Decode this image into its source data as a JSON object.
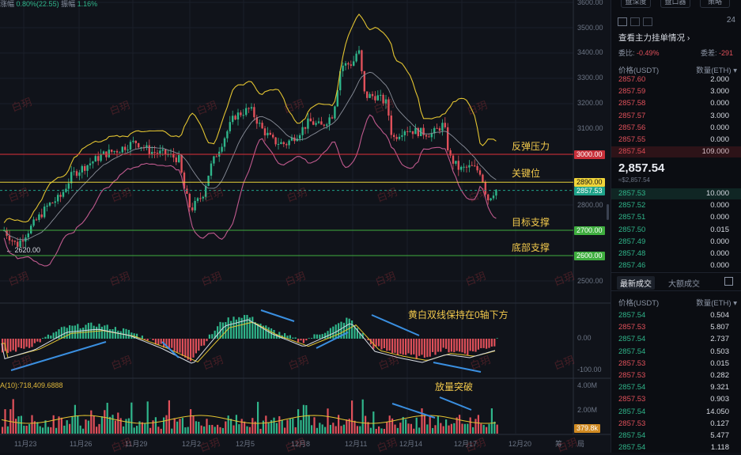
{
  "top_stats": {
    "change_label": "涨幅",
    "change_value": "0.80%(22.55)",
    "amp_label": "振幅",
    "amp_value": "1.16%"
  },
  "price_axis": [
    "3600.00",
    "3500.00",
    "3400.00",
    "3300.00",
    "3200.00",
    "3100.00",
    "3000.00",
    "2900.00",
    "2800.00",
    "2700.00",
    "2600.00",
    "2500.00"
  ],
  "macd_axis": [
    "0.00",
    "-100.00"
  ],
  "vol_axis": [
    "4.00M",
    "2.00M"
  ],
  "vol_label": "A(10):718,409.6888",
  "time_axis": [
    "11月23",
    "11月26",
    "11月29",
    "12月2",
    "12月5",
    "12月8",
    "12月11",
    "12月14",
    "12月17",
    "12月20"
  ],
  "time_extra": "筹",
  "time_extra2": "局",
  "tags": {
    "r3000": "3000.00",
    "y2890": "2890.00",
    "last": "2857.53",
    "g2700": "2700.00",
    "g2600": "2600.00",
    "vol": "379.8k"
  },
  "low_label": "← 2620.00",
  "annotations": {
    "rebound": "反弹压力",
    "key": "关键位",
    "target": "目标支撑",
    "bottom": "底部支撑",
    "macd": "黄白双线保持在0轴下方",
    "volume": "放量突破"
  },
  "watermark": "白玥",
  "side": {
    "tabs": [
      "盘深度",
      "盘口器",
      "策略"
    ],
    "tab_right": "24",
    "section_title": "查看主力挂单情况",
    "ratio_label": "委比:",
    "ratio_value": "-0.49%",
    "diff_label": "委差:",
    "diff_value": "-291",
    "price_hdr": "价格(USDT)",
    "qty_hdr": "数量(ETH)",
    "asks": [
      {
        "p": "2857.60",
        "q": "2.000"
      },
      {
        "p": "2857.59",
        "q": "3.000"
      },
      {
        "p": "2857.58",
        "q": "0.000"
      },
      {
        "p": "2857.57",
        "q": "3.000"
      },
      {
        "p": "2857.56",
        "q": "0.000"
      },
      {
        "p": "2857.55",
        "q": "0.000"
      },
      {
        "p": "2857.54",
        "q": "109.000"
      }
    ],
    "last_price": "2,857.54",
    "last_sub": "≈$2,857.54",
    "bids": [
      {
        "p": "2857.53",
        "q": "10.000"
      },
      {
        "p": "2857.52",
        "q": "0.000"
      },
      {
        "p": "2857.51",
        "q": "0.000"
      },
      {
        "p": "2857.50",
        "q": "0.015"
      },
      {
        "p": "2857.49",
        "q": "0.000"
      },
      {
        "p": "2857.48",
        "q": "0.000"
      },
      {
        "p": "2857.46",
        "q": "0.000"
      }
    ],
    "trade_tab1": "最新成交",
    "trade_tab2": "大额成交",
    "trade_price_hdr": "价格(USDT)",
    "trade_qty_hdr": "数量(ETH)",
    "trades": [
      {
        "p": "2857.54",
        "q": "0.504",
        "c": "green"
      },
      {
        "p": "2857.53",
        "q": "5.807",
        "c": "red"
      },
      {
        "p": "2857.54",
        "q": "2.737",
        "c": "green"
      },
      {
        "p": "2857.54",
        "q": "0.503",
        "c": "green"
      },
      {
        "p": "2857.53",
        "q": "0.015",
        "c": "red"
      },
      {
        "p": "2857.53",
        "q": "0.282",
        "c": "red"
      },
      {
        "p": "2857.54",
        "q": "9.321",
        "c": "green"
      },
      {
        "p": "2857.53",
        "q": "0.903",
        "c": "red"
      },
      {
        "p": "2857.54",
        "q": "14.050",
        "c": "green"
      },
      {
        "p": "2857.53",
        "q": "0.127",
        "c": "red"
      },
      {
        "p": "2857.54",
        "q": "5.477",
        "c": "green"
      },
      {
        "p": "2857.54",
        "q": "1.118",
        "c": "green"
      }
    ]
  }
}
